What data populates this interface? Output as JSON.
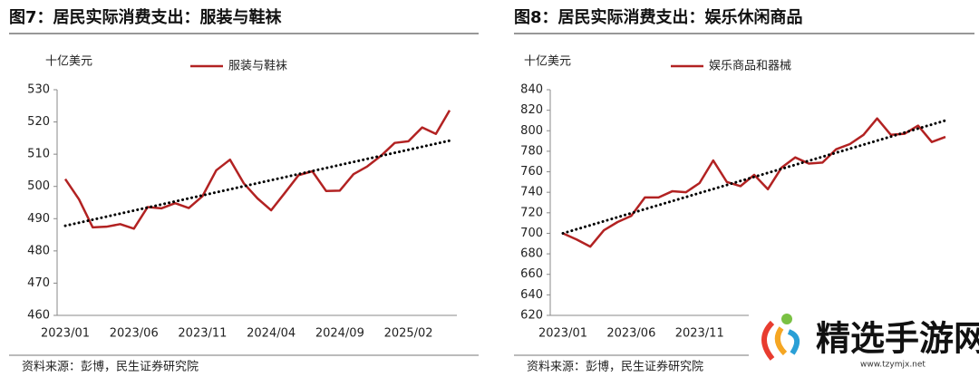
{
  "chart_data": [
    {
      "type": "line",
      "title": "图7：居民实际消费支出：服装与鞋袜",
      "y_label": "十亿美元",
      "source": "资料来源：彭博，民生证券研究院",
      "categories": [
        "2023/01",
        null,
        null,
        null,
        null,
        "2023/06",
        null,
        null,
        null,
        null,
        "2023/11",
        null,
        null,
        null,
        null,
        "2024/04",
        null,
        null,
        null,
        null,
        "2024/09",
        null,
        null,
        null,
        null,
        "2025/02",
        null,
        null,
        null
      ],
      "series": [
        {
          "name": "服装与鞋袜",
          "color": "#b22222",
          "values": [
            502.3,
            496,
            487.3,
            487.5,
            488.3,
            486.9,
            493.6,
            493.2,
            494.8,
            493.3,
            497,
            505,
            508.3,
            501,
            496.3,
            492.6,
            498,
            503.5,
            504.7,
            498.6,
            498.7,
            503.8,
            506.2,
            509.5,
            513.5,
            514,
            518.3,
            516.3,
            523.6
          ]
        }
      ],
      "trend_values": [
        487.8,
        514.2
      ],
      "trend_color": "#000000",
      "ylim": [
        460,
        530
      ],
      "yticks": [
        460,
        470,
        480,
        490,
        500,
        510,
        520,
        530
      ]
    },
    {
      "type": "line",
      "title": "图8：居民实际消费支出：娱乐休闲商品",
      "y_label": "十亿美元",
      "source": "资料来源：彭博，民生证券研究院",
      "categories": [
        "2023/01",
        null,
        null,
        null,
        null,
        "2023/06",
        null,
        null,
        null,
        null,
        "2023/11",
        null,
        null,
        null,
        null,
        null,
        null,
        null,
        null,
        null,
        null,
        null,
        null,
        null,
        null,
        null,
        null,
        null,
        null
      ],
      "series": [
        {
          "name": "娱乐商品和器械",
          "color": "#b22222",
          "values": [
            700,
            694,
            687,
            703,
            711,
            717,
            735,
            735,
            741,
            740,
            749,
            771,
            750,
            746,
            757,
            743,
            764,
            774,
            768,
            769,
            782,
            787,
            796,
            812,
            796,
            797,
            805,
            789,
            794
          ]
        }
      ],
      "trend_values": [
        700,
        810
      ],
      "trend_color": "#000000",
      "ylim": [
        620,
        840
      ],
      "yticks": [
        620,
        640,
        660,
        680,
        700,
        720,
        740,
        760,
        780,
        800,
        820,
        840
      ]
    }
  ],
  "watermark": {
    "title": "精选手游网",
    "url": "www.tzymjx.net"
  }
}
